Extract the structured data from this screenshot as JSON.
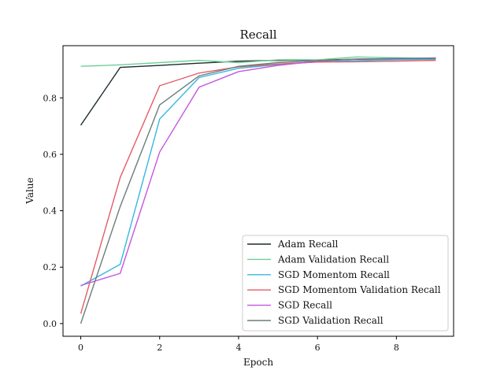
{
  "chart_data": {
    "type": "line",
    "title": "Recall",
    "xlabel": "Epoch",
    "ylabel": "Value",
    "x": [
      0,
      1,
      2,
      3,
      4,
      5,
      6,
      7,
      8,
      9
    ],
    "xlim": [
      -0.45,
      9.45
    ],
    "ylim": [
      -0.045,
      0.985
    ],
    "xticks": [
      0,
      2,
      4,
      6,
      8
    ],
    "yticks": [
      0.0,
      0.2,
      0.4,
      0.6,
      0.8
    ],
    "grid": false,
    "legend_position": "bottom-right",
    "series": [
      {
        "name": "Adam Recall",
        "color": "#1b2a2f",
        "values": [
          0.703,
          0.908,
          0.915,
          0.923,
          0.93,
          0.933,
          0.934,
          0.937,
          0.938,
          0.938
        ]
      },
      {
        "name": "Adam Validation Recall",
        "color": "#6fcf97",
        "values": [
          0.912,
          0.917,
          0.925,
          0.933,
          0.925,
          0.935,
          0.935,
          0.945,
          0.942,
          0.94
        ]
      },
      {
        "name": "SGD Momentom Recall",
        "color": "#35b8e0",
        "values": [
          0.133,
          0.21,
          0.725,
          0.872,
          0.905,
          0.918,
          0.928,
          0.932,
          0.935,
          0.937
        ]
      },
      {
        "name": "SGD Momentom Validation Recall",
        "color": "#e45c68",
        "values": [
          0.035,
          0.518,
          0.843,
          0.888,
          0.91,
          0.92,
          0.927,
          0.928,
          0.93,
          0.933
        ]
      },
      {
        "name": "SGD Recall",
        "color": "#c455e0",
        "values": [
          0.135,
          0.178,
          0.608,
          0.838,
          0.893,
          0.915,
          0.93,
          0.938,
          0.938,
          0.942
        ]
      },
      {
        "name": "SGD Validation Recall",
        "color": "#6b7d7a",
        "values": [
          0.0,
          0.415,
          0.775,
          0.878,
          0.912,
          0.925,
          0.932,
          0.937,
          0.94,
          0.94
        ]
      }
    ]
  }
}
